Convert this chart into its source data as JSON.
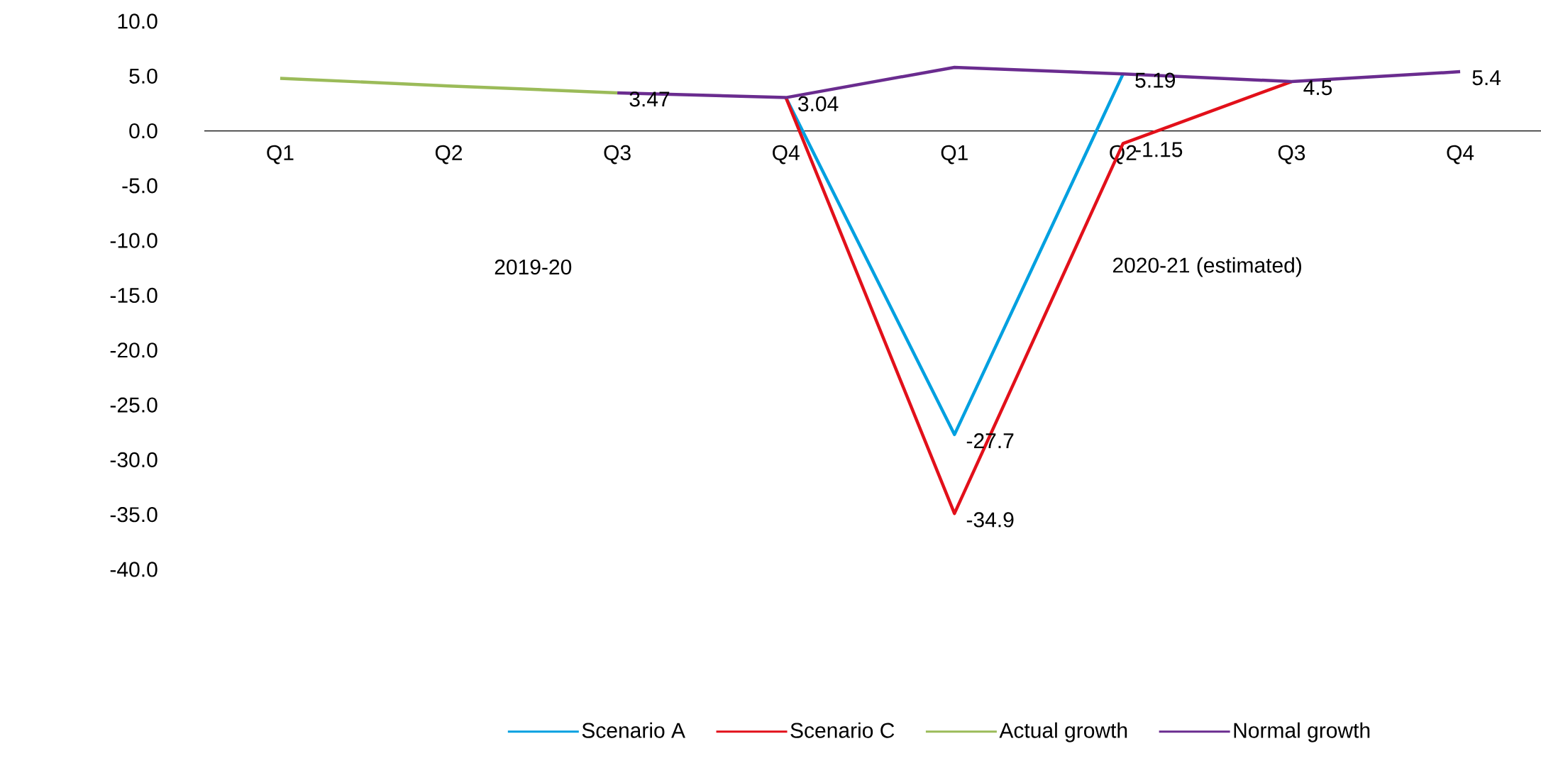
{
  "chart_data": {
    "type": "line",
    "categories": [
      "Q1",
      "Q2",
      "Q3",
      "Q4",
      "Q1",
      "Q2",
      "Q3",
      "Q4"
    ],
    "annotations": [
      "2019-20",
      "2020-21 (estimated)"
    ],
    "ylim": [
      -40,
      10
    ],
    "yticks": [
      {
        "value": 10,
        "label": "10.0"
      },
      {
        "value": 5,
        "label": "5.0"
      },
      {
        "value": 0,
        "label": "0.0"
      },
      {
        "value": -5,
        "label": "-5.0"
      },
      {
        "value": -10,
        "label": "-10.0"
      },
      {
        "value": -15,
        "label": "-15.0"
      },
      {
        "value": -20,
        "label": "-20.0"
      },
      {
        "value": -25,
        "label": "-25.0"
      },
      {
        "value": -30,
        "label": "-30.0"
      },
      {
        "value": -35,
        "label": "-35.0"
      },
      {
        "value": -40,
        "label": "-40.0"
      }
    ],
    "legend": "bottom",
    "series": [
      {
        "name": "Scenario A",
        "color": "#00a0e0",
        "values": [
          null,
          null,
          null,
          3.04,
          -27.7,
          5.19,
          null,
          null
        ],
        "value_labels": [
          null,
          null,
          null,
          null,
          "-27.7",
          "5.19",
          null,
          null
        ]
      },
      {
        "name": "Scenario C",
        "color": "#e2101a",
        "values": [
          null,
          null,
          null,
          3.04,
          -34.9,
          -1.15,
          4.5,
          null
        ],
        "value_labels": [
          null,
          null,
          null,
          null,
          "-34.9",
          "-1.15",
          "4.5",
          null
        ]
      },
      {
        "name": "Actual growth",
        "color": "#9bbb59",
        "values": [
          4.8,
          4.1,
          3.47,
          null,
          null,
          null,
          null,
          null
        ],
        "value_labels": [
          null,
          null,
          "3.47",
          null,
          null,
          null,
          null,
          null
        ]
      },
      {
        "name": "Normal growth",
        "color": "#6a2c8f",
        "values": [
          null,
          null,
          3.47,
          3.04,
          5.8,
          5.19,
          4.5,
          5.4
        ],
        "value_labels": [
          null,
          null,
          null,
          "3.04",
          null,
          null,
          null,
          "5.4"
        ]
      }
    ]
  }
}
